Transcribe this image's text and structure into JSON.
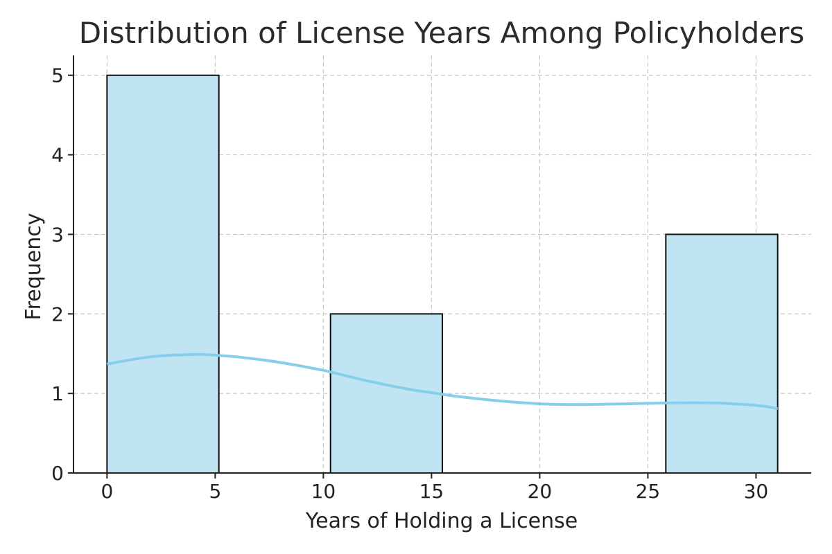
{
  "chart_data": {
    "type": "bar",
    "title": "Distribution of License Years Among Policyholders",
    "xlabel": "Years of Holding a License",
    "ylabel": "Frequency",
    "xlim": [
      -1.55,
      32.55
    ],
    "ylim": [
      0,
      5.25
    ],
    "xticks": [
      0,
      5,
      10,
      15,
      20,
      25,
      30
    ],
    "yticks": [
      0,
      1,
      2,
      3,
      4,
      5
    ],
    "grid": true,
    "bins": [
      {
        "start": 0.0,
        "end": 5.17,
        "count": 5
      },
      {
        "start": 5.17,
        "end": 10.33,
        "count": 0
      },
      {
        "start": 10.33,
        "end": 15.5,
        "count": 2
      },
      {
        "start": 15.5,
        "end": 20.67,
        "count": 0
      },
      {
        "start": 20.67,
        "end": 25.83,
        "count": 0
      },
      {
        "start": 25.83,
        "end": 31.0,
        "count": 3
      }
    ],
    "kde": {
      "x": [
        0,
        2,
        4,
        5,
        6,
        8,
        10,
        12,
        14,
        15,
        16,
        18,
        20,
        22,
        24,
        26,
        28,
        30,
        31
      ],
      "y": [
        1.37,
        1.46,
        1.49,
        1.48,
        1.46,
        1.39,
        1.29,
        1.16,
        1.05,
        1.01,
        0.97,
        0.91,
        0.87,
        0.86,
        0.87,
        0.88,
        0.88,
        0.85,
        0.81
      ]
    },
    "colors": {
      "bar_fill": "#c1e4f3",
      "bar_edge": "#111111",
      "kde_line": "#87ceeb"
    }
  }
}
